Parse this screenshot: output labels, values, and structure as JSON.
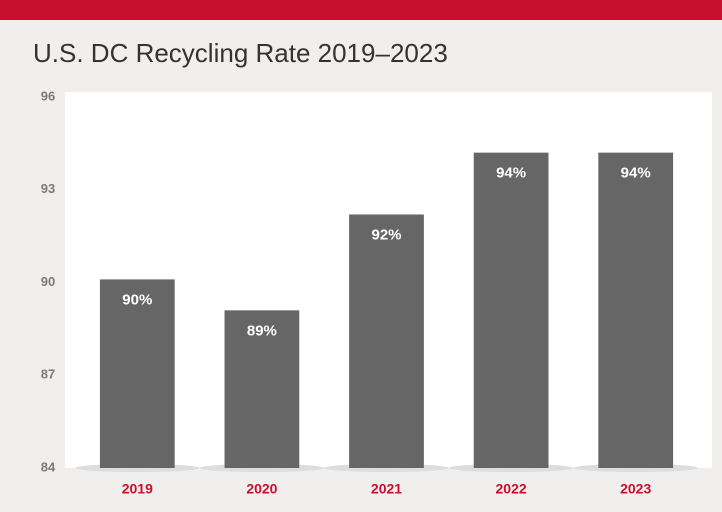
{
  "chart_data": {
    "type": "bar",
    "title": "U.S. DC Recycling Rate 2019–2023",
    "categories": [
      "2019",
      "2020",
      "2021",
      "2022",
      "2023"
    ],
    "values": [
      90.1,
      89.1,
      92.2,
      94.2,
      94.2
    ],
    "value_labels": [
      "90%",
      "89%",
      "92%",
      "94%",
      "94%"
    ],
    "color": "#666666",
    "ylim": [
      84,
      96
    ],
    "yticks": [
      84,
      87,
      90,
      93,
      96
    ],
    "grid": false
  }
}
